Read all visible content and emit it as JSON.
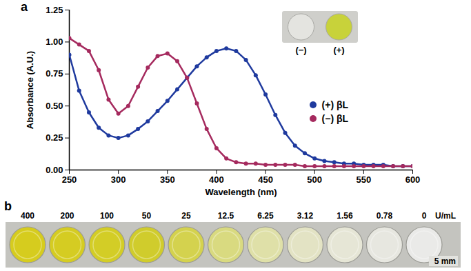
{
  "chart_data": [
    {
      "type": "line",
      "panel": "a",
      "x_label": "Wavelength (nm)",
      "y_label": "Absorbance (A.U.)",
      "x": [
        250,
        260,
        270,
        280,
        290,
        300,
        310,
        320,
        330,
        340,
        350,
        360,
        370,
        380,
        390,
        400,
        410,
        420,
        430,
        440,
        450,
        460,
        470,
        480,
        490,
        500,
        510,
        520,
        530,
        540,
        550,
        560,
        570,
        580,
        590,
        600
      ],
      "series": [
        {
          "name": "(+) βL",
          "color": "#1f3a9e",
          "marker": "circle",
          "line_style": "solid",
          "values": [
            0.9,
            0.62,
            0.45,
            0.33,
            0.27,
            0.25,
            0.27,
            0.32,
            0.38,
            0.46,
            0.54,
            0.63,
            0.72,
            0.81,
            0.88,
            0.93,
            0.95,
            0.93,
            0.86,
            0.74,
            0.59,
            0.43,
            0.29,
            0.19,
            0.13,
            0.09,
            0.07,
            0.06,
            0.05,
            0.05,
            0.04,
            0.04,
            0.04,
            0.03,
            0.03,
            0.03
          ]
        },
        {
          "name": "(−) βL",
          "color": "#a52a5e",
          "marker": "circle",
          "line_style": "solid",
          "values": [
            1.03,
            0.98,
            0.93,
            0.78,
            0.55,
            0.44,
            0.5,
            0.65,
            0.8,
            0.89,
            0.91,
            0.85,
            0.72,
            0.52,
            0.32,
            0.17,
            0.09,
            0.06,
            0.05,
            0.05,
            0.04,
            0.04,
            0.04,
            0.04,
            0.03,
            0.03,
            0.03,
            0.03,
            0.03,
            0.03,
            0.03,
            0.03,
            0.03,
            0.03,
            0.03,
            0.03
          ]
        }
      ],
      "xlim": [
        250,
        600
      ],
      "xticks": [
        250,
        300,
        350,
        400,
        450,
        500,
        550,
        600
      ],
      "ylim": [
        0,
        1.25
      ],
      "yticks": [
        {
          "value": 0,
          "label": "0.00"
        },
        {
          "value": 0.25,
          "label": "0.25"
        },
        {
          "value": 0.5,
          "label": "0.50"
        },
        {
          "value": 0.75,
          "label": "0.75"
        },
        {
          "value": 1,
          "label": "1.00"
        },
        {
          "value": 1.25,
          "label": "1.25"
        }
      ],
      "legend": "right",
      "grid": false,
      "inset": {
        "labels": [
          "(−)",
          "(+)"
        ],
        "colors": [
          "#e4e4e0",
          "#c8d23a"
        ]
      }
    },
    {
      "type": "wells",
      "panel": "b",
      "categories": [
        400,
        200,
        100,
        50,
        25,
        12.5,
        6.25,
        3.12,
        1.56,
        0.78,
        0
      ],
      "unit": "U/mL",
      "colors": [
        "#d6cc1e",
        "#d5cc22",
        "#d3cd26",
        "#d0cc2c",
        "#d4d24e",
        "#d9da80",
        "#dfe0a8",
        "#e3e3c4",
        "#e6e6d6",
        "#e7e7e0",
        "#eaeae8"
      ],
      "scale_bar": "5 mm"
    }
  ]
}
